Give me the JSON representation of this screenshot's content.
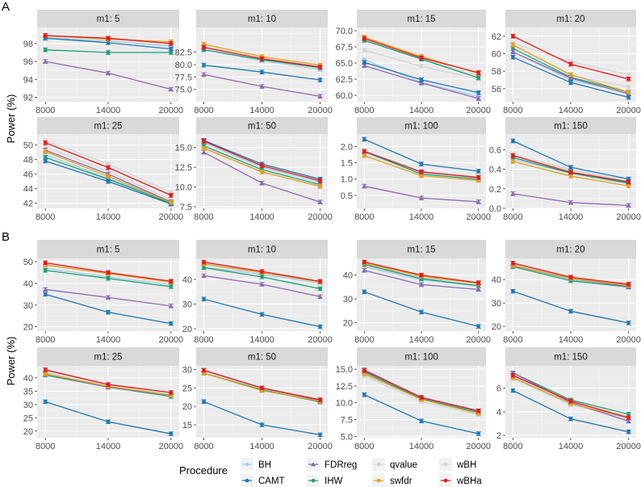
{
  "chart_data": {
    "type": "line",
    "x": [
      8000,
      14000,
      20000
    ],
    "ylabel": "Power (%)",
    "legend_title": "Procedure",
    "legend_position": "bottom",
    "procedures": [
      {
        "name": "BH",
        "color": "#a6cee3",
        "marker": "circle"
      },
      {
        "name": "CAMT",
        "color": "#1f78b4",
        "marker": "circle"
      },
      {
        "name": "FDRreg",
        "color": "#8c6bb1",
        "marker": "triangle"
      },
      {
        "name": "IHW",
        "color": "#1b9e77",
        "marker": "circle"
      },
      {
        "name": "qvalue",
        "color": "#d4d4d4",
        "marker": "circle"
      },
      {
        "name": "swfdr",
        "color": "#e6a020",
        "marker": "circle"
      },
      {
        "name": "wBH",
        "color": "#d6d6d6",
        "marker": "circle"
      },
      {
        "name": "wBHa",
        "color": "#e31a1c",
        "marker": "circle"
      }
    ],
    "panels": [
      {
        "label": "A",
        "facets": [
          {
            "title": "m1: 5",
            "ylim": [
              91.5,
              99.8
            ],
            "yticks": [
              92,
              94,
              96,
              98
            ],
            "series": {
              "BH": [
                98.6,
                98.3,
                97.7
              ],
              "CAMT": [
                98.6,
                98.1,
                97.4
              ],
              "FDRreg": [
                96.0,
                94.7,
                92.9
              ],
              "IHW": [
                97.3,
                97.0,
                97.0
              ],
              "qvalue": [
                98.8,
                98.5,
                98.1
              ],
              "swfdr": [
                98.9,
                98.5,
                98.2
              ],
              "wBH": [
                98.7,
                98.3,
                97.8
              ],
              "wBHa": [
                98.9,
                98.6,
                98.0
              ]
            }
          },
          {
            "title": "m1: 10",
            "ylim": [
              72.5,
              87.5
            ],
            "yticks": [
              75.0,
              77.5,
              80.0,
              82.5
            ],
            "series": {
              "BH": [
                83.0,
                80.8,
                79.0
              ],
              "CAMT": [
                79.9,
                78.5,
                76.9
              ],
              "FDRreg": [
                78.0,
                75.6,
                73.6
              ],
              "IHW": [
                83.0,
                81.0,
                79.4
              ],
              "qvalue": [
                83.5,
                81.2,
                79.7
              ],
              "swfdr": [
                84.1,
                81.6,
                79.9
              ],
              "wBH": [
                83.3,
                81.0,
                79.2
              ],
              "wBHa": [
                83.5,
                81.2,
                79.5
              ]
            }
          },
          {
            "title": "m1: 15",
            "ylim": [
              59.0,
              70.5
            ],
            "yticks": [
              60.0,
              62.5,
              65.0,
              67.5,
              70.0
            ],
            "series": {
              "BH": [
                65.5,
                62.0,
                59.8
              ],
              "CAMT": [
                65.1,
                62.4,
                60.4
              ],
              "FDRreg": [
                64.6,
                61.9,
                59.5
              ],
              "IHW": [
                68.5,
                65.6,
                62.7
              ],
              "qvalue": [
                67.0,
                64.5,
                62.5
              ],
              "swfdr": [
                69.0,
                66.0,
                63.4
              ],
              "wBH": [
                68.6,
                65.7,
                63.0
              ],
              "wBHa": [
                68.8,
                65.8,
                63.5
              ]
            }
          },
          {
            "title": "m1: 20",
            "ylim": [
              54.5,
              63.0
            ],
            "yticks": [
              56,
              58,
              60,
              62
            ],
            "series": {
              "BH": [
                60.2,
                57.0,
                55.5
              ],
              "CAMT": [
                59.6,
                56.7,
                55.0
              ],
              "FDRreg": [
                60.2,
                57.2,
                55.4
              ],
              "IHW": [
                60.6,
                57.3,
                55.6
              ],
              "qvalue": [
                61.1,
                57.5,
                56.2
              ],
              "swfdr": [
                61.0,
                57.6,
                55.6
              ],
              "wBH": [
                61.2,
                59.1,
                57.6
              ],
              "wBHa": [
                62.0,
                58.8,
                57.1
              ]
            }
          },
          {
            "title": "m1: 25",
            "ylim": [
              41.3,
              51.5
            ],
            "yticks": [
              42,
              44,
              46,
              48,
              50
            ],
            "series": {
              "BH": [
                48.7,
                45.4,
                42.2
              ],
              "CAMT": [
                47.8,
                45.0,
                41.9
              ],
              "FDRreg": [
                49.3,
                46.0,
                42.2
              ],
              "IHW": [
                48.3,
                45.3,
                42.0
              ],
              "qvalue": [
                49.8,
                46.4,
                42.5
              ],
              "swfdr": [
                49.1,
                45.7,
                42.1
              ],
              "wBH": [
                50.6,
                47.4,
                43.5
              ],
              "wBHa": [
                50.3,
                46.9,
                43.1
              ]
            }
          },
          {
            "title": "m1: 50",
            "ylim": [
              7.3,
              16.7
            ],
            "yticks": [
              7.5,
              10.0,
              12.5,
              15.0
            ],
            "series": {
              "BH": [
                15.6,
                12.5,
                10.6
              ],
              "CAMT": [
                15.9,
                12.9,
                11.0
              ],
              "FDRreg": [
                14.4,
                10.5,
                8.1
              ],
              "IHW": [
                15.2,
                12.2,
                10.3
              ],
              "qvalue": [
                15.0,
                12.0,
                10.0
              ],
              "swfdr": [
                14.9,
                11.9,
                10.1
              ],
              "wBH": [
                15.7,
                12.6,
                10.7
              ],
              "wBHa": [
                15.8,
                12.7,
                10.8
              ]
            }
          },
          {
            "title": "m1: 100",
            "ylim": [
              0.1,
              2.38
            ],
            "yticks": [
              0.5,
              1.0,
              1.5,
              2.0
            ],
            "series": {
              "BH": [
                1.8,
                1.2,
                1.05
              ],
              "CAMT": [
                2.22,
                1.46,
                1.24
              ],
              "FDRreg": [
                0.78,
                0.42,
                0.3
              ],
              "IHW": [
                1.85,
                1.15,
                1.0
              ],
              "qvalue": [
                1.72,
                1.1,
                0.95
              ],
              "swfdr": [
                1.72,
                1.1,
                0.96
              ],
              "wBH": [
                1.8,
                1.2,
                1.05
              ],
              "wBHa": [
                1.85,
                1.22,
                1.05
              ]
            }
          },
          {
            "title": "m1: 150",
            "ylim": [
              0.0,
              0.76
            ],
            "yticks": [
              0.0,
              0.2,
              0.4,
              0.6
            ],
            "series": {
              "BH": [
                0.5,
                0.36,
                0.25
              ],
              "CAMT": [
                0.69,
                0.42,
                0.3
              ],
              "FDRreg": [
                0.15,
                0.06,
                0.03
              ],
              "IHW": [
                0.52,
                0.36,
                0.26
              ],
              "qvalue": [
                0.55,
                0.39,
                0.27
              ],
              "swfdr": [
                0.48,
                0.33,
                0.23
              ],
              "wBH": [
                0.55,
                0.4,
                0.28
              ],
              "wBHa": [
                0.54,
                0.37,
                0.27
              ]
            }
          }
        ]
      },
      {
        "label": "B",
        "facets": [
          {
            "title": "m1: 5",
            "ylim": [
              18.0,
              51.5
            ],
            "yticks": [
              20,
              30,
              40,
              50
            ],
            "series": {
              "BH": [
                47.0,
                43.0,
                39.5
              ],
              "CAMT": [
                35.0,
                26.7,
                21.5
              ],
              "FDRreg": [
                37.2,
                33.5,
                29.6
              ],
              "IHW": [
                46.0,
                42.3,
                38.5
              ],
              "qvalue": [
                48.5,
                44.6,
                41.0
              ],
              "swfdr": [
                48.5,
                44.5,
                40.6
              ],
              "wBH": [
                49.0,
                45.0,
                41.0
              ],
              "wBHa": [
                49.5,
                45.0,
                41.0
              ]
            }
          },
          {
            "title": "m1: 10",
            "ylim": [
              19.0,
              48.5
            ],
            "yticks": [
              20,
              30,
              40
            ],
            "series": {
              "BH": [
                45.0,
                42.0,
                38.5
              ],
              "CAMT": [
                32.0,
                25.8,
                20.8
              ],
              "FDRreg": [
                41.5,
                38.0,
                33.0
              ],
              "IHW": [
                44.8,
                41.0,
                36.2
              ],
              "qvalue": [
                46.0,
                42.5,
                38.8
              ],
              "swfdr": [
                46.2,
                42.8,
                39.0
              ],
              "wBH": [
                46.5,
                43.0,
                39.0
              ],
              "wBHa": [
                47.0,
                43.2,
                39.2
              ]
            }
          },
          {
            "title": "m1: 15",
            "ylim": [
              16.5,
              47.0
            ],
            "yticks": [
              20,
              30,
              40
            ],
            "series": {
              "BH": [
                43.5,
                38.0,
                35.5
              ],
              "CAMT": [
                33.0,
                24.5,
                18.5
              ],
              "FDRreg": [
                42.0,
                36.0,
                34.0
              ],
              "IHW": [
                44.5,
                38.5,
                35.5
              ],
              "qvalue": [
                44.0,
                38.5,
                35.5
              ],
              "swfdr": [
                45.0,
                39.5,
                36.5
              ],
              "wBH": [
                44.5,
                39.0,
                36.5
              ],
              "wBHa": [
                45.5,
                40.0,
                36.8
              ]
            }
          },
          {
            "title": "m1: 20",
            "ylim": [
              18.0,
              49.0
            ],
            "yticks": [
              20,
              30,
              40
            ],
            "series": {
              "BH": [
                46.0,
                40.0,
                37.5
              ],
              "CAMT": [
                35.0,
                26.5,
                21.5
              ],
              "FDRreg": [
                46.0,
                40.5,
                37.0
              ],
              "IHW": [
                45.5,
                39.5,
                36.8
              ],
              "qvalue": [
                46.0,
                40.5,
                37.5
              ],
              "swfdr": [
                46.0,
                40.5,
                37.5
              ],
              "wBH": [
                46.5,
                41.0,
                38.0
              ],
              "wBHa": [
                47.0,
                41.0,
                38.0
              ]
            }
          },
          {
            "title": "m1: 25",
            "ylim": [
              17.5,
              44.5
            ],
            "yticks": [
              20,
              25,
              30,
              35,
              40
            ],
            "series": {
              "BH": [
                41.5,
                36.7,
                33.5
              ],
              "CAMT": [
                31.0,
                23.5,
                19.0
              ],
              "FDRreg": [
                41.5,
                36.5,
                33.5
              ],
              "IHW": [
                41.0,
                36.5,
                33.0
              ],
              "qvalue": [
                42.0,
                37.0,
                34.0
              ],
              "swfdr": [
                41.5,
                36.8,
                33.5
              ],
              "wBH": [
                42.5,
                37.5,
                34.0
              ],
              "wBHa": [
                43.0,
                37.5,
                34.5
              ]
            }
          },
          {
            "title": "m1: 50",
            "ylim": [
              11.5,
              31.0
            ],
            "yticks": [
              15,
              20,
              25,
              30
            ],
            "series": {
              "BH": [
                29.0,
                24.5,
                21.3
              ],
              "CAMT": [
                21.3,
                15.0,
                12.3
              ],
              "FDRreg": [
                29.8,
                25.0,
                21.6
              ],
              "IHW": [
                29.0,
                24.5,
                21.2
              ],
              "qvalue": [
                29.2,
                24.5,
                21.5
              ],
              "swfdr": [
                29.0,
                24.3,
                21.4
              ],
              "wBH": [
                29.6,
                24.8,
                21.6
              ],
              "wBHa": [
                29.8,
                25.0,
                21.8
              ]
            }
          },
          {
            "title": "m1: 100",
            "ylim": [
              4.8,
              15.5
            ],
            "yticks": [
              5.0,
              7.5,
              10.0,
              12.5,
              15.0
            ],
            "series": {
              "BH": [
                14.5,
                10.5,
                8.5
              ],
              "CAMT": [
                11.2,
                7.3,
                5.4
              ],
              "FDRreg": [
                14.9,
                10.8,
                8.8
              ],
              "IHW": [
                14.6,
                10.6,
                8.6
              ],
              "qvalue": [
                14.0,
                10.2,
                8.2
              ],
              "swfdr": [
                14.3,
                10.5,
                8.4
              ],
              "wBH": [
                14.5,
                10.6,
                8.6
              ],
              "wBHa": [
                14.8,
                10.8,
                8.8
              ]
            }
          },
          {
            "title": "m1: 150",
            "ylim": [
              1.8,
              7.9
            ],
            "yticks": [
              2,
              4,
              6
            ],
            "series": {
              "BH": [
                7.0,
                4.7,
                3.4
              ],
              "CAMT": [
                5.8,
                3.4,
                2.3
              ],
              "FDRreg": [
                7.3,
                4.8,
                3.2
              ],
              "IHW": [
                7.3,
                5.0,
                3.8
              ],
              "qvalue": [
                6.8,
                4.6,
                3.4
              ],
              "swfdr": [
                6.9,
                4.7,
                3.5
              ],
              "wBH": [
                7.0,
                4.8,
                3.6
              ],
              "wBHa": [
                7.1,
                4.9,
                3.5
              ]
            }
          }
        ]
      }
    ]
  }
}
